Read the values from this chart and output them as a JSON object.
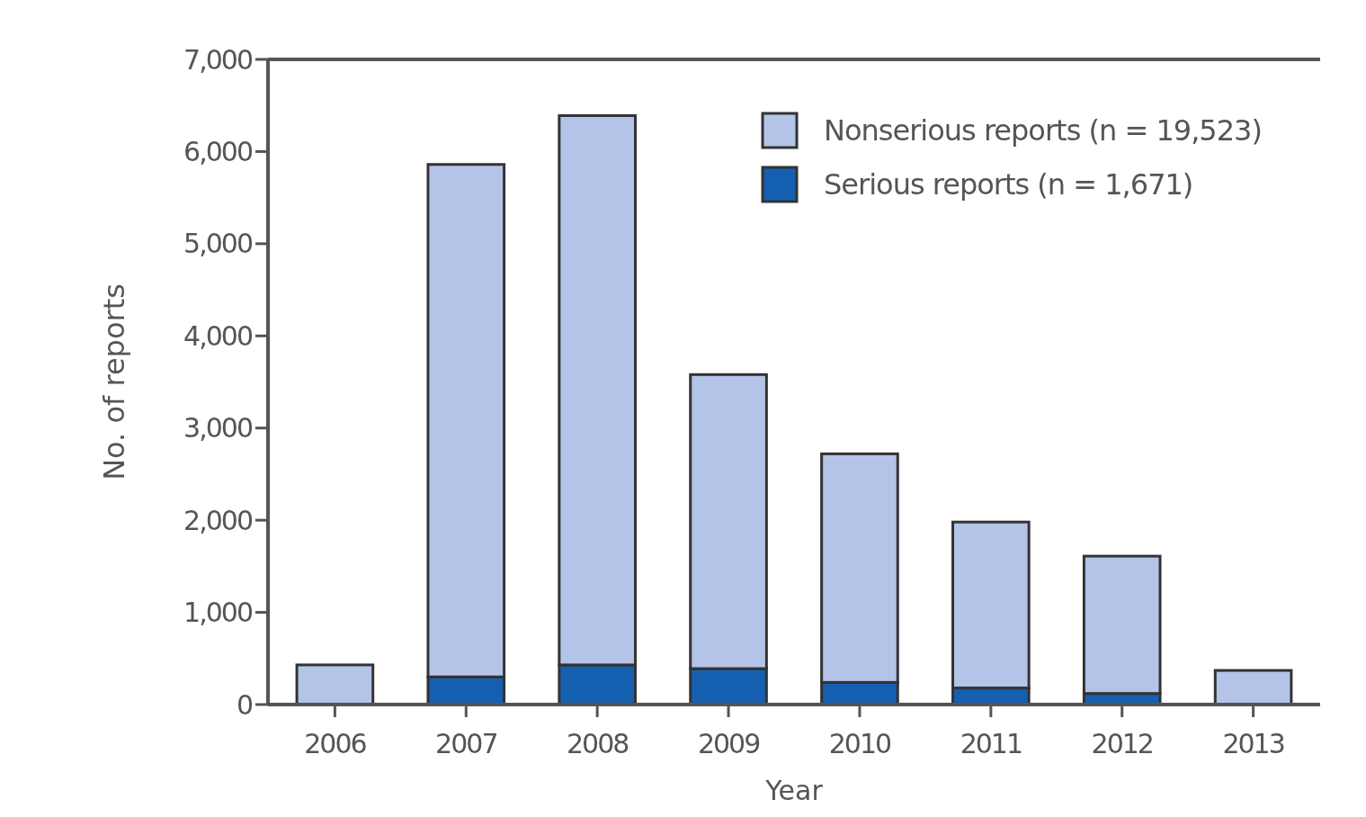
{
  "chart_data": {
    "type": "bar",
    "stacked": true,
    "xlabel": "Year",
    "ylabel": "No. of reports",
    "categories": [
      "2006",
      "2007",
      "2008",
      "2009",
      "2010",
      "2011",
      "2012",
      "2013"
    ],
    "series": [
      {
        "name": "Serious reports (n = 1,671)",
        "color": "#1560b0",
        "values": [
          null,
          300,
          430,
          390,
          240,
          180,
          120,
          null
        ]
      },
      {
        "name": "Nonserious reports (n = 19,523)",
        "color": "#b4c4e8",
        "values": [
          430,
          5560,
          5960,
          3190,
          2480,
          1800,
          1490,
          370
        ]
      }
    ],
    "ylim": [
      0,
      7000
    ],
    "yticks": [
      {
        "value": 0,
        "label": "0"
      },
      {
        "value": 1000,
        "label": "1,000"
      },
      {
        "value": 2000,
        "label": "2,000"
      },
      {
        "value": 3000,
        "label": "3,000"
      },
      {
        "value": 4000,
        "label": "4,000"
      },
      {
        "value": 5000,
        "label": "5,000"
      },
      {
        "value": 6000,
        "label": "6,000"
      },
      {
        "value": 7000,
        "label": "7,000"
      }
    ],
    "grid": false,
    "legend": "top right"
  }
}
